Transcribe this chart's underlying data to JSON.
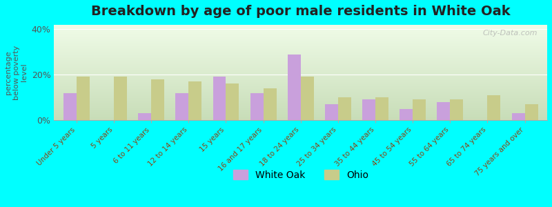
{
  "title": "Breakdown by age of poor male residents in White Oak",
  "ylabel": "percentage\nbelow poverty\nlevel",
  "categories": [
    "Under 5 years",
    "5 years",
    "6 to 11 years",
    "12 to 14 years",
    "15 years",
    "16 and 17 years",
    "18 to 24 years",
    "25 to 34 years",
    "35 to 44 years",
    "45 to 54 years",
    "55 to 64 years",
    "65 to 74 years",
    "75 years and over"
  ],
  "white_oak": [
    12,
    0,
    3,
    12,
    19,
    12,
    29,
    7,
    9,
    5,
    8,
    0,
    3
  ],
  "ohio": [
    19,
    19,
    18,
    17,
    16,
    14,
    19,
    10,
    10,
    9,
    9,
    11,
    7
  ],
  "white_oak_color": "#c9a0dc",
  "ohio_color": "#c8cc8a",
  "background_color": "#e8f5e0",
  "plot_bg_gradient_top": "#f5fff0",
  "plot_bg_gradient_bottom": "#d8f0c8",
  "outer_bg": "#00ffff",
  "ylim": [
    0,
    42
  ],
  "yticks": [
    0,
    20,
    40
  ],
  "ytick_labels": [
    "0%",
    "20%",
    "40%"
  ],
  "bar_width": 0.35,
  "title_fontsize": 14,
  "legend_fontsize": 10,
  "tick_label_fontsize": 7.5
}
